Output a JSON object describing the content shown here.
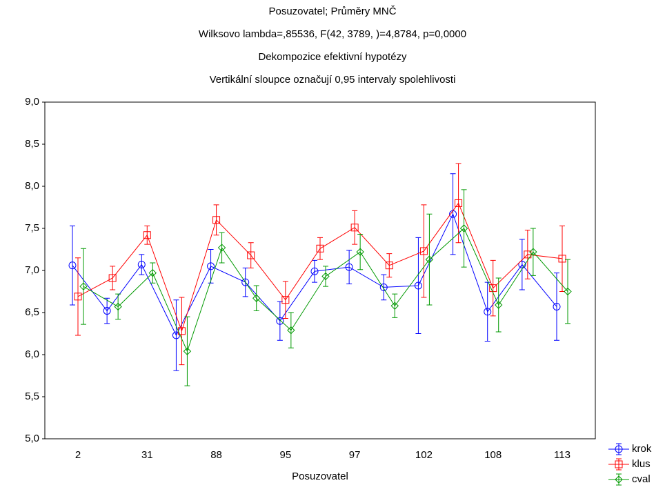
{
  "chart_data": {
    "type": "line",
    "title": "Posuzovatel; Průměry MNČ",
    "subtitle": [
      "Wilksovo lambda=,85536, F(42, 3789, )=4,8784, p=0,0000",
      "Dekompozice efektivní hypotézy",
      "Vertikální sloupce označují 0,95 intervaly spolehlivosti"
    ],
    "x_label": "Posuzovatel",
    "categories": [
      "2",
      null,
      "31",
      null,
      "88",
      null,
      "95",
      null,
      "97",
      null,
      "102",
      null,
      "108",
      null,
      "113"
    ],
    "ylim": [
      5,
      9
    ],
    "yticks": [
      {
        "value": 5,
        "label": "5,0"
      },
      {
        "value": 5.5,
        "label": "5,5"
      },
      {
        "value": 6,
        "label": "6,0"
      },
      {
        "value": 6.5,
        "label": "6,5"
      },
      {
        "value": 7,
        "label": "7,0"
      },
      {
        "value": 7.5,
        "label": "7,5"
      },
      {
        "value": 8,
        "label": "8,0"
      },
      {
        "value": 8.5,
        "label": "8,5"
      },
      {
        "value": 9,
        "label": "9,0"
      }
    ],
    "grid": false,
    "legend": "bottom-right",
    "series": [
      {
        "name": "krok",
        "color": "#0000ff",
        "marker": "circle",
        "values": [
          7.06,
          6.52,
          7.07,
          6.23,
          7.05,
          6.86,
          6.4,
          6.99,
          7.04,
          6.8,
          6.82,
          7.67,
          6.51,
          7.07,
          6.57
        ],
        "errors": [
          0.47,
          0.15,
          0.12,
          0.42,
          0.2,
          0.17,
          0.23,
          0.13,
          0.2,
          0.15,
          0.57,
          0.48,
          0.35,
          0.3,
          0.4
        ]
      },
      {
        "name": "klus",
        "color": "#ff0000",
        "marker": "square",
        "values": [
          6.69,
          6.91,
          7.42,
          6.28,
          7.6,
          7.18,
          6.65,
          7.26,
          7.51,
          7.06,
          7.23,
          7.8,
          6.79,
          7.19,
          7.14
        ],
        "errors": [
          0.46,
          0.14,
          0.11,
          0.4,
          0.18,
          0.15,
          0.22,
          0.13,
          0.2,
          0.14,
          0.55,
          0.47,
          0.33,
          0.29,
          0.39
        ]
      },
      {
        "name": "cval",
        "color": "#009900",
        "marker": "diamond",
        "values": [
          6.81,
          6.57,
          6.97,
          6.04,
          7.27,
          6.67,
          6.29,
          6.93,
          7.22,
          6.58,
          7.13,
          7.5,
          6.59,
          7.22,
          6.75
        ],
        "errors": [
          0.45,
          0.15,
          0.12,
          0.41,
          0.18,
          0.15,
          0.21,
          0.12,
          0.21,
          0.14,
          0.54,
          0.46,
          0.32,
          0.28,
          0.38
        ]
      }
    ]
  }
}
